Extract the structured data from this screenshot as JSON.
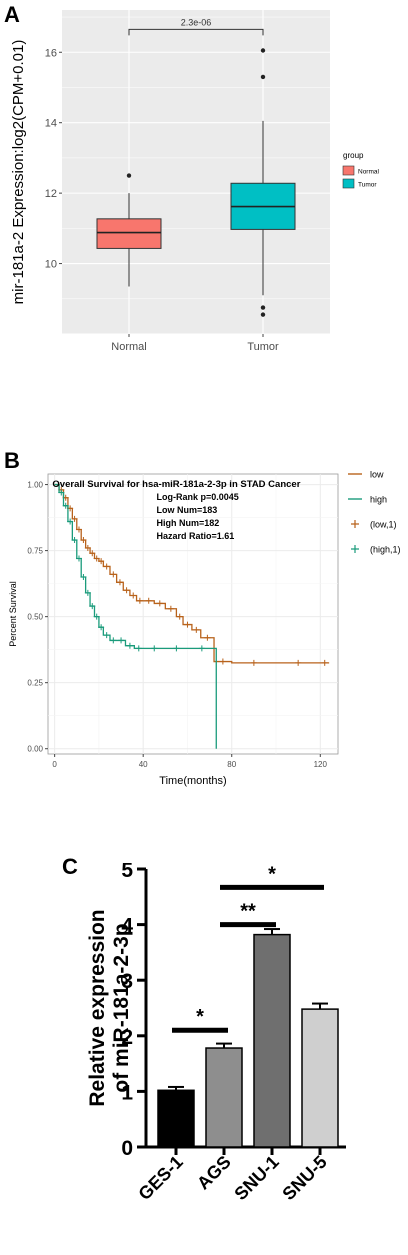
{
  "panels": [
    "A",
    "B",
    "C"
  ],
  "chart_data": [
    {
      "type": "box",
      "ylabel": "mir-181a-2 Expression:log2(CPM+0.01)",
      "xlabel": "",
      "categories": [
        "Normal",
        "Tumor"
      ],
      "ylim": [
        8.0,
        17.2
      ],
      "yticks": [
        10,
        12,
        14,
        16
      ],
      "grid": true,
      "legend": {
        "title": "group",
        "position": "right",
        "entries": [
          "Normal",
          "Tumor"
        ]
      },
      "series": [
        {
          "name": "Normal",
          "color": "#f8766d",
          "min": 9.35,
          "q1": 10.43,
          "median": 10.88,
          "q3": 11.27,
          "max": 12.0,
          "outliers": [
            12.5
          ]
        },
        {
          "name": "Tumor",
          "color": "#00bfc4",
          "min": 9.1,
          "q1": 10.97,
          "median": 11.62,
          "q3": 12.28,
          "max": 14.05,
          "outliers": [
            16.05,
            15.3,
            8.75,
            8.55
          ]
        }
      ],
      "annotation": {
        "text": "2.3e-06",
        "between": [
          "Normal",
          "Tumor"
        ]
      }
    },
    {
      "type": "line",
      "title": "Overall Survival for hsa-miR-181a-2-3p in STAD Cancer",
      "stats": [
        "Log-Rank p=0.0045",
        "Low Num=183",
        "High Num=182",
        "Hazard Ratio=1.61"
      ],
      "xlabel": "Time(months)",
      "ylabel": "Percent Survival",
      "xlim": [
        -3,
        128
      ],
      "ylim": [
        -0.02,
        1.04
      ],
      "xticks": [
        0,
        40,
        80,
        120
      ],
      "yticks": [
        0.0,
        0.25,
        0.5,
        0.75,
        1.0
      ],
      "ytick_labels": [
        "0.00",
        "0.25",
        "0.50",
        "0.75",
        "1.00"
      ],
      "grid": true,
      "legend": {
        "position": "right",
        "entries": [
          "low",
          "high",
          "(low,1)",
          "(high,1)"
        ]
      },
      "series": [
        {
          "name": "low",
          "color": "#b8621b",
          "x": [
            0,
            2,
            4,
            6,
            8,
            10,
            12,
            14,
            16,
            18,
            20,
            22,
            25,
            28,
            31,
            34,
            37,
            40,
            45,
            50,
            55,
            58,
            62,
            66,
            72,
            80,
            100,
            120,
            124
          ],
          "y": [
            1.0,
            0.98,
            0.95,
            0.91,
            0.87,
            0.83,
            0.79,
            0.76,
            0.74,
            0.72,
            0.71,
            0.69,
            0.66,
            0.63,
            0.6,
            0.58,
            0.56,
            0.56,
            0.55,
            0.53,
            0.5,
            0.47,
            0.45,
            0.42,
            0.33,
            0.325,
            0.325,
            0.325,
            0.325
          ]
        },
        {
          "name": "high",
          "color": "#1a9b7b",
          "x": [
            0,
            2,
            4,
            6,
            8,
            10,
            12,
            14,
            16,
            18,
            20,
            22,
            25,
            28,
            32,
            36,
            40,
            50,
            60,
            73,
            73.01
          ],
          "y": [
            1.0,
            0.97,
            0.92,
            0.86,
            0.79,
            0.72,
            0.65,
            0.59,
            0.54,
            0.5,
            0.46,
            0.43,
            0.41,
            0.41,
            0.39,
            0.38,
            0.38,
            0.38,
            0.38,
            0.38,
            0.0
          ]
        }
      ]
    },
    {
      "type": "bar",
      "ylabel": "Relative expression of miR-181a-2-3p",
      "categories": [
        "GES-1",
        "AGS",
        "SNU-1",
        "SNU-5"
      ],
      "values": [
        1.02,
        1.78,
        3.82,
        2.48
      ],
      "errors": [
        0.06,
        0.08,
        0.1,
        0.1
      ],
      "colors": [
        "#000000",
        "#8e8e8e",
        "#6f6f6f",
        "#cfcfcf"
      ],
      "ylim": [
        0,
        5
      ],
      "yticks": [
        0,
        1,
        2,
        3,
        4,
        5
      ],
      "significance": [
        {
          "label": "*",
          "from": "GES-1",
          "to": "AGS",
          "level": 2.1
        },
        {
          "label": "**",
          "from": "AGS",
          "to": "SNU-1",
          "level": 4.0
        },
        {
          "label": "*",
          "from": "AGS",
          "to": "SNU-5",
          "level": 4.67
        }
      ]
    }
  ]
}
